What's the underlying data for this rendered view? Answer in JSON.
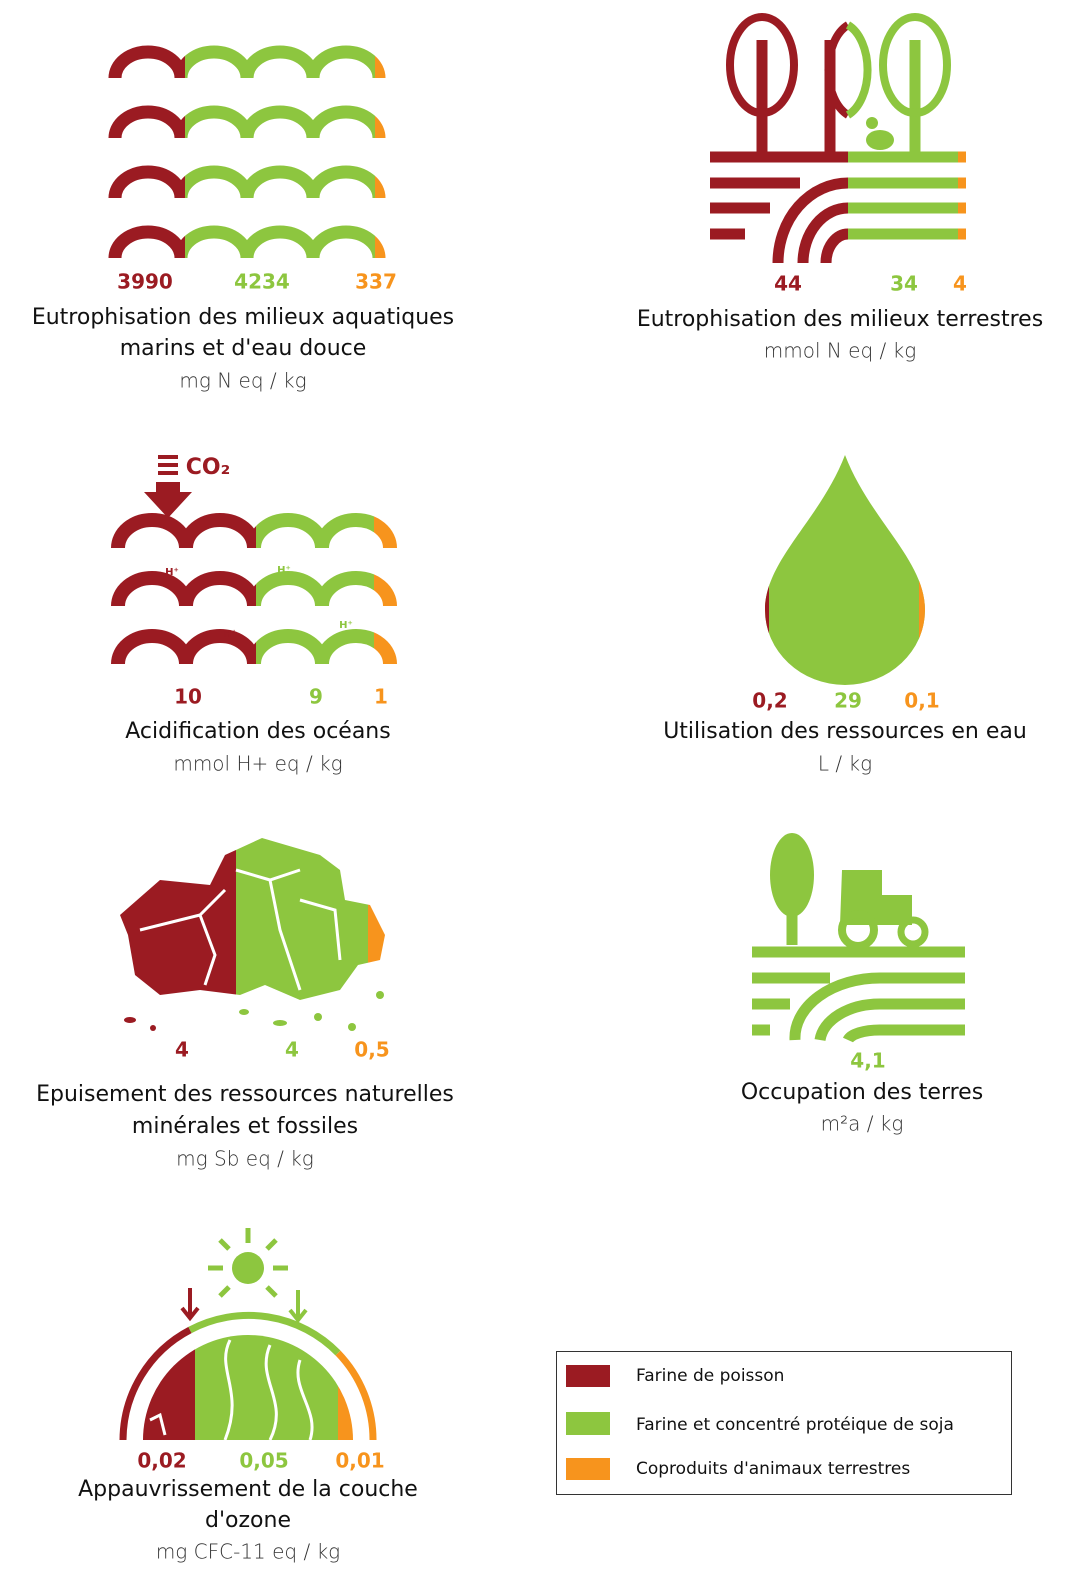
{
  "panels": [
    {
      "values": [
        "3990",
        "4234",
        "337"
      ],
      "title": [
        "Eutrophisation des milieux aquatiques",
        "marins et d'eau douce"
      ],
      "unit": "mg N eq / kg"
    },
    {
      "values": [
        "44",
        "34",
        "4"
      ],
      "title": [
        "Eutrophisation des milieux terrestres"
      ],
      "unit": "mmol N eq / kg"
    },
    {
      "values": [
        "10",
        "9",
        "1"
      ],
      "title": [
        "Acidification des océans"
      ],
      "unit": "mmol H+ eq / kg",
      "icon_labels": [
        "CO₂",
        "H⁺"
      ]
    },
    {
      "values": [
        "0,2",
        "29",
        "0,1"
      ],
      "title": [
        "Utilisation des ressources en eau"
      ],
      "unit": "L / kg"
    },
    {
      "values": [
        "4",
        "4",
        "0,5"
      ],
      "title": [
        "Epuisement des ressources naturelles",
        "minérales et fossiles"
      ],
      "unit": "mg Sb eq / kg"
    },
    {
      "values": [
        "4,1"
      ],
      "title": [
        "Occupation des terres"
      ],
      "unit": "m²a / kg"
    },
    {
      "values": [
        "0,02",
        "0,05",
        "0,01"
      ],
      "title": [
        "Appauvrissement de la couche",
        "d'ozone"
      ],
      "unit": "mg CFC-11 eq / kg"
    }
  ],
  "legend": [
    "Farine de poisson",
    "Farine et concentré protéique de soja",
    "Coproduits d'animaux terrestres"
  ]
}
